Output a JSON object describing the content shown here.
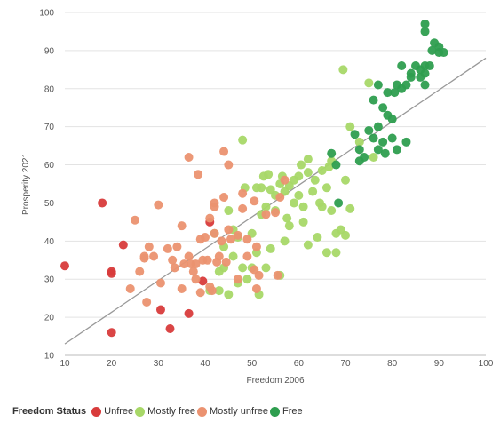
{
  "chart_data": {
    "type": "scatter",
    "title": "",
    "xlabel": "Freedom 2006",
    "ylabel": "Prosperity 2021",
    "xlim": [
      10,
      100
    ],
    "ylim": [
      10,
      100
    ],
    "x_ticks": [
      "10",
      "20",
      "30",
      "40",
      "50",
      "60",
      "70",
      "80",
      "90",
      "100"
    ],
    "y_ticks": [
      "10",
      "20",
      "30",
      "40",
      "50",
      "60",
      "70",
      "80",
      "90",
      "100"
    ],
    "grid": "horizontal",
    "legend_title": "Freedom Status",
    "legend_position": "bottom-left",
    "trendline": {
      "x": [
        10,
        100
      ],
      "y": [
        13,
        88
      ],
      "color": "#999999"
    },
    "series": [
      {
        "name": "Unfree",
        "color": "#d83b3b",
        "points": [
          [
            10,
            33.5
          ],
          [
            18,
            50
          ],
          [
            20,
            32
          ],
          [
            20,
            31.5
          ],
          [
            20,
            16
          ],
          [
            22.5,
            39
          ],
          [
            30.5,
            22
          ],
          [
            32.5,
            17
          ],
          [
            36.5,
            21
          ],
          [
            39.5,
            29.5
          ],
          [
            41,
            45
          ]
        ]
      },
      {
        "name": "Mostly free",
        "color": "#a8d868",
        "points": [
          [
            41,
            27
          ],
          [
            42,
            42
          ],
          [
            43,
            32
          ],
          [
            43,
            27
          ],
          [
            44,
            38.5
          ],
          [
            44,
            33
          ],
          [
            45,
            48
          ],
          [
            45,
            26
          ],
          [
            46,
            36
          ],
          [
            46,
            43
          ],
          [
            47,
            29
          ],
          [
            47,
            41
          ],
          [
            48,
            33
          ],
          [
            48,
            66.5
          ],
          [
            48.5,
            54
          ],
          [
            49,
            30
          ],
          [
            50,
            33
          ],
          [
            50,
            42
          ],
          [
            51,
            37
          ],
          [
            51,
            54
          ],
          [
            51.5,
            26
          ],
          [
            52,
            47
          ],
          [
            52,
            54
          ],
          [
            52.5,
            57
          ],
          [
            53,
            33
          ],
          [
            53,
            49
          ],
          [
            53.5,
            57.5
          ],
          [
            54,
            38
          ],
          [
            54,
            53.5
          ],
          [
            55,
            48
          ],
          [
            55,
            52
          ],
          [
            56,
            31
          ],
          [
            56,
            55
          ],
          [
            56.5,
            57
          ],
          [
            57,
            40
          ],
          [
            57,
            53
          ],
          [
            57.5,
            46
          ],
          [
            58,
            54.5
          ],
          [
            58,
            44
          ],
          [
            59,
            50
          ],
          [
            59,
            56
          ],
          [
            60,
            52
          ],
          [
            60,
            57
          ],
          [
            60.5,
            60
          ],
          [
            61,
            45
          ],
          [
            61,
            49
          ],
          [
            62,
            39
          ],
          [
            62,
            58
          ],
          [
            62,
            61.5
          ],
          [
            63,
            53
          ],
          [
            63.5,
            56
          ],
          [
            64,
            41
          ],
          [
            64.5,
            50
          ],
          [
            65,
            49
          ],
          [
            65,
            58.5
          ],
          [
            66,
            37
          ],
          [
            66,
            54
          ],
          [
            66.5,
            59.5
          ],
          [
            67,
            48
          ],
          [
            67,
            61
          ],
          [
            68,
            42
          ],
          [
            68,
            37
          ],
          [
            69,
            43
          ],
          [
            69.5,
            85
          ],
          [
            70,
            56
          ],
          [
            70,
            41.5
          ],
          [
            71,
            48.5
          ],
          [
            71,
            70
          ],
          [
            73,
            66
          ],
          [
            75,
            81.5
          ],
          [
            76,
            62
          ]
        ]
      },
      {
        "name": "Mostly unfree",
        "color": "#eb9270",
        "points": [
          [
            24,
            27.5
          ],
          [
            25,
            45.5
          ],
          [
            26,
            32
          ],
          [
            27,
            36
          ],
          [
            27,
            35.5
          ],
          [
            27.5,
            24
          ],
          [
            28,
            38.5
          ],
          [
            29,
            36
          ],
          [
            30,
            49.5
          ],
          [
            30.5,
            29
          ],
          [
            32,
            38
          ],
          [
            33,
            35
          ],
          [
            33.5,
            33
          ],
          [
            34,
            38.5
          ],
          [
            35,
            44
          ],
          [
            35,
            27.5
          ],
          [
            35.5,
            34
          ],
          [
            36.5,
            62
          ],
          [
            36.5,
            36
          ],
          [
            37,
            34
          ],
          [
            37.5,
            32
          ],
          [
            38,
            30
          ],
          [
            38,
            34
          ],
          [
            38.5,
            57.5
          ],
          [
            39,
            40.5
          ],
          [
            39,
            26.5
          ],
          [
            39.5,
            35
          ],
          [
            40,
            41
          ],
          [
            40.5,
            35
          ],
          [
            41,
            46
          ],
          [
            41,
            28
          ],
          [
            41.5,
            27
          ],
          [
            42,
            49
          ],
          [
            42,
            42
          ],
          [
            42,
            50
          ],
          [
            42.5,
            34.5
          ],
          [
            43,
            36
          ],
          [
            43.5,
            40
          ],
          [
            44,
            63.5
          ],
          [
            44,
            51.5
          ],
          [
            44.5,
            34.5
          ],
          [
            45,
            43
          ],
          [
            45,
            60
          ],
          [
            45.5,
            40.5
          ],
          [
            47,
            41.5
          ],
          [
            47,
            30
          ],
          [
            48,
            52.5
          ],
          [
            48,
            48.5
          ],
          [
            49,
            36
          ],
          [
            49,
            40.5
          ],
          [
            50.5,
            50.5
          ],
          [
            50.5,
            32.5
          ],
          [
            51,
            38.5
          ],
          [
            51,
            27.5
          ],
          [
            51.5,
            31
          ],
          [
            53,
            47
          ],
          [
            55,
            47.5
          ],
          [
            55.5,
            31
          ],
          [
            56,
            51.5
          ],
          [
            57,
            56
          ]
        ]
      },
      {
        "name": "Free",
        "color": "#2e9e4f",
        "points": [
          [
            67,
            63
          ],
          [
            68,
            60
          ],
          [
            68.5,
            50
          ],
          [
            72,
            68
          ],
          [
            73,
            61
          ],
          [
            73,
            64
          ],
          [
            74,
            62
          ],
          [
            75,
            69
          ],
          [
            76,
            67
          ],
          [
            76,
            77
          ],
          [
            77,
            64
          ],
          [
            77,
            70
          ],
          [
            77,
            81
          ],
          [
            78,
            66
          ],
          [
            78,
            75
          ],
          [
            78.5,
            63
          ],
          [
            79,
            73
          ],
          [
            79,
            79
          ],
          [
            80,
            72
          ],
          [
            80,
            67
          ],
          [
            80.5,
            79
          ],
          [
            81,
            64
          ],
          [
            81,
            81
          ],
          [
            82,
            86
          ],
          [
            82,
            80
          ],
          [
            83,
            66
          ],
          [
            83,
            81
          ],
          [
            84,
            83
          ],
          [
            84,
            84
          ],
          [
            85,
            86
          ],
          [
            86,
            85
          ],
          [
            86,
            83
          ],
          [
            87,
            84
          ],
          [
            87,
            86
          ],
          [
            87,
            81
          ],
          [
            87,
            95
          ],
          [
            87,
            97
          ],
          [
            88,
            86
          ],
          [
            88.5,
            90
          ],
          [
            89,
            92
          ],
          [
            90,
            91
          ],
          [
            90,
            89.5
          ],
          [
            91,
            89.5
          ]
        ]
      }
    ]
  }
}
